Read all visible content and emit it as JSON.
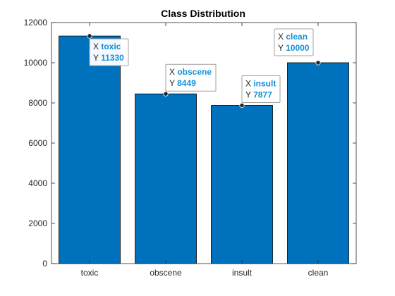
{
  "chart_data": {
    "type": "bar",
    "title": "Class Distribution",
    "xlabel": "",
    "ylabel": "",
    "categories": [
      "toxic",
      "obscene",
      "insult",
      "clean"
    ],
    "values": [
      11330,
      8449,
      7877,
      10000
    ],
    "ylim": [
      0,
      12000
    ],
    "yticks": [
      0,
      2000,
      4000,
      6000,
      8000,
      10000,
      12000
    ],
    "ytick_labels": [
      "0",
      "2000",
      "4000",
      "6000",
      "8000",
      "10000",
      "12000"
    ],
    "grid": false,
    "bar_color": "#0072bd",
    "datatips": [
      {
        "category_index": 0,
        "x_prefix": "X",
        "x_value": "toxic",
        "y_prefix": "Y",
        "y_value": "11330"
      },
      {
        "category_index": 1,
        "x_prefix": "X",
        "x_value": "obscene",
        "y_prefix": "Y",
        "y_value": "8449"
      },
      {
        "category_index": 2,
        "x_prefix": "X",
        "x_value": "insult",
        "y_prefix": "Y",
        "y_value": "7877"
      },
      {
        "category_index": 3,
        "x_prefix": "X",
        "x_value": "clean",
        "y_prefix": "Y",
        "y_value": "10000"
      }
    ]
  }
}
